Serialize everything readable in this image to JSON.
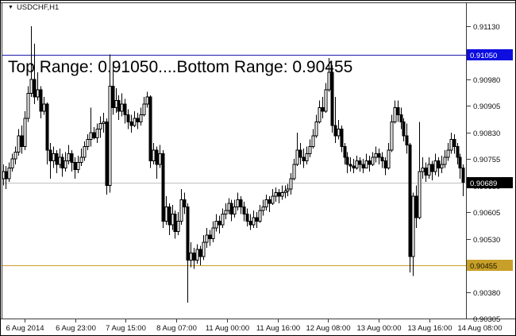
{
  "header": {
    "symbol": "USDCHF,H1"
  },
  "annotation": {
    "text": "Top Range: 0.91050....Bottom Range: 0.90455"
  },
  "colors": {
    "background": "#ffffff",
    "frame": "#3a3a3a",
    "axis_text": "#101010",
    "candle_up_fill": "#ffffff",
    "candle_down_fill": "#000000",
    "candle_border": "#000000",
    "top_range_line": "#1c1caa",
    "top_range_box_bg": "#0d0de0",
    "top_range_box_text": "#ffffff",
    "bottom_range_line": "#c8a029",
    "bottom_range_box_bg": "#c8a029",
    "bottom_range_box_text": "#1a1200",
    "current_price_line": "#c0c0c0",
    "current_price_box_bg": "#000000",
    "current_price_box_text": "#ffffff"
  },
  "chart_data": {
    "type": "candlestick",
    "symbol": "USDCHF",
    "timeframe": "H1",
    "title": "Top Range: 0.91050....Bottom Range: 0.90455",
    "top_range": 0.9105,
    "bottom_range": 0.90455,
    "current_price": 0.90689,
    "ylim": [
      0.90305,
      0.91197
    ],
    "y_tick_step": 0.00075,
    "y_axis_ticks": [
      0.9113,
      0.91055,
      0.9098,
      0.90905,
      0.9083,
      0.90755,
      0.9068,
      0.90605,
      0.9053,
      0.90455,
      0.9038,
      0.90305
    ],
    "x_axis_labels": [
      "6 Aug 2014",
      "6 Aug 23:00",
      "7 Aug 15:00",
      "8 Aug 07:00",
      "11 Aug 00:00",
      "11 Aug 16:00",
      "12 Aug 08:00",
      "13 Aug 00:00",
      "13 Aug 16:00",
      "14 Aug 08:00"
    ],
    "ohlc": {
      "first_open": 0.907,
      "closes": [
        0.9072,
        0.907,
        0.9073,
        0.90755,
        0.90775,
        0.9082,
        0.9079,
        0.9087,
        0.9094,
        0.9098,
        0.9093,
        0.9095,
        0.9089,
        0.9091,
        0.9078,
        0.9075,
        0.9077,
        0.9074,
        0.9076,
        0.9073,
        0.9075,
        0.9077,
        0.90745,
        0.90725,
        0.90745,
        0.9076,
        0.9079,
        0.9081,
        0.9083,
        0.90815,
        0.9084,
        0.90855,
        0.9086,
        0.9068,
        0.9096,
        0.909,
        0.9092,
        0.9089,
        0.9091,
        0.9088,
        0.9086,
        0.9085,
        0.9087,
        0.9086,
        0.9088,
        0.9091,
        0.9093,
        0.9075,
        0.9078,
        0.9074,
        0.9077,
        0.9058,
        0.9062,
        0.9057,
        0.906,
        0.9055,
        0.9058,
        0.9064,
        0.9062,
        0.9047,
        0.9049,
        0.9047,
        0.905,
        0.9048,
        0.9052,
        0.9054,
        0.9053,
        0.9056,
        0.9058,
        0.9057,
        0.906,
        0.9061,
        0.9063,
        0.906,
        0.9062,
        0.9064,
        0.9062,
        0.906,
        0.9058,
        0.9057,
        0.9059,
        0.9058,
        0.9061,
        0.9062,
        0.9064,
        0.9063,
        0.9065,
        0.9066,
        0.9065,
        0.9066,
        0.90665,
        0.9067,
        0.907,
        0.9074,
        0.9078,
        0.9076,
        0.9075,
        0.9077,
        0.9079,
        0.9082,
        0.9086,
        0.909,
        0.9089,
        0.9095,
        0.91,
        0.9085,
        0.9082,
        0.9084,
        0.9079,
        0.9076,
        0.9074,
        0.90735,
        0.9073,
        0.9075,
        0.9074,
        0.9073,
        0.9075,
        0.9074,
        0.9076,
        0.9077,
        0.9076,
        0.9075,
        0.9073,
        0.9078,
        0.9086,
        0.909,
        0.9088,
        0.9086,
        0.9082,
        0.90795,
        0.9048,
        0.9065,
        0.9059,
        0.9072,
        0.9073,
        0.9071,
        0.9074,
        0.9072,
        0.9075,
        0.9073,
        0.9074,
        0.9076,
        0.9078,
        0.9081,
        0.9079,
        0.9076,
        0.9073,
        0.90689
      ],
      "highs": [
        0.9074,
        0.90735,
        0.90745,
        0.9077,
        0.9079,
        0.9084,
        0.9085,
        0.9089,
        0.9096,
        0.9113,
        0.9108,
        0.91,
        0.9096,
        0.9093,
        0.90915,
        0.908,
        0.9079,
        0.9078,
        0.90785,
        0.9077,
        0.90775,
        0.90795,
        0.9078,
        0.9076,
        0.90765,
        0.90785,
        0.90805,
        0.90825,
        0.909,
        0.90845,
        0.90855,
        0.90875,
        0.90885,
        0.9087,
        0.9105,
        0.9103,
        0.90955,
        0.90935,
        0.9094,
        0.90925,
        0.90895,
        0.9088,
        0.9089,
        0.90885,
        0.909,
        0.9093,
        0.90945,
        0.90935,
        0.908,
        0.9079,
        0.90795,
        0.9078,
        0.9065,
        0.9063,
        0.90625,
        0.9061,
        0.90605,
        0.9067,
        0.9066,
        0.9063,
        0.9052,
        0.90505,
        0.90515,
        0.9051,
        0.9054,
        0.9056,
        0.90555,
        0.9058,
        0.906,
        0.90595,
        0.90615,
        0.9063,
        0.90645,
        0.9064,
        0.9064,
        0.9066,
        0.9065,
        0.90635,
        0.90615,
        0.906,
        0.9061,
        0.90605,
        0.90625,
        0.9064,
        0.90655,
        0.9065,
        0.9067,
        0.90675,
        0.9067,
        0.9068,
        0.9068,
        0.90685,
        0.90715,
        0.90755,
        0.9083,
        0.908,
        0.90785,
        0.9079,
        0.9081,
        0.9084,
        0.9088,
        0.9092,
        0.9093,
        0.9097,
        0.9104,
        0.9102,
        0.9093,
        0.90865,
        0.9085,
        0.908,
        0.90775,
        0.9076,
        0.90755,
        0.90765,
        0.9076,
        0.90755,
        0.9077,
        0.90765,
        0.90775,
        0.9079,
        0.90785,
        0.90775,
        0.9076,
        0.908,
        0.9088,
        0.9092,
        0.9092,
        0.909,
        0.9087,
        0.90855,
        0.908,
        0.9066,
        0.9068,
        0.9086,
        0.9076,
        0.90745,
        0.9076,
        0.9075,
        0.9077,
        0.9076,
        0.90765,
        0.9078,
        0.908,
        0.9083,
        0.90825,
        0.908,
        0.9077,
        0.9074
      ],
      "lows": [
        0.9068,
        0.9067,
        0.9069,
        0.9072,
        0.9074,
        0.90765,
        0.9077,
        0.9078,
        0.9086,
        0.9093,
        0.9091,
        0.9092,
        0.9087,
        0.9088,
        0.9074,
        0.907,
        0.9073,
        0.90715,
        0.9073,
        0.90705,
        0.9072,
        0.9074,
        0.9072,
        0.907,
        0.90715,
        0.90735,
        0.9075,
        0.9078,
        0.9079,
        0.9081,
        0.908,
        0.90815,
        0.9083,
        0.90655,
        0.9066,
        0.9088,
        0.90885,
        0.90865,
        0.90875,
        0.90855,
        0.9084,
        0.9083,
        0.90845,
        0.9084,
        0.9085,
        0.90875,
        0.909,
        0.9073,
        0.9074,
        0.907,
        0.9073,
        0.9056,
        0.9057,
        0.9054,
        0.90555,
        0.9053,
        0.9054,
        0.9057,
        0.906,
        0.9035,
        0.9045,
        0.90445,
        0.9046,
        0.90455,
        0.9047,
        0.90505,
        0.9051,
        0.9052,
        0.9055,
        0.90545,
        0.9056,
        0.90585,
        0.906,
        0.9058,
        0.9059,
        0.9061,
        0.906,
        0.9058,
        0.90565,
        0.90555,
        0.9056,
        0.9056,
        0.90575,
        0.90595,
        0.9061,
        0.90605,
        0.90625,
        0.90635,
        0.9063,
        0.9064,
        0.90645,
        0.9065,
        0.90655,
        0.90695,
        0.90735,
        0.9074,
        0.9073,
        0.9074,
        0.9076,
        0.90785,
        0.90815,
        0.90855,
        0.9087,
        0.90885,
        0.90945,
        0.9083,
        0.908,
        0.9081,
        0.90775,
        0.9074,
        0.90715,
        0.9072,
        0.90715,
        0.90725,
        0.9072,
        0.90715,
        0.9073,
        0.9072,
        0.90735,
        0.90745,
        0.9074,
        0.9073,
        0.9071,
        0.90725,
        0.90775,
        0.90855,
        0.9086,
        0.9084,
        0.90805,
        0.9077,
        0.90435,
        0.90425,
        0.9056,
        0.90585,
        0.907,
        0.9069,
        0.907,
        0.90695,
        0.9071,
        0.90705,
        0.90715,
        0.9073,
        0.9075,
        0.9077,
        0.9077,
        0.9074,
        0.907,
        0.9065
      ]
    }
  }
}
